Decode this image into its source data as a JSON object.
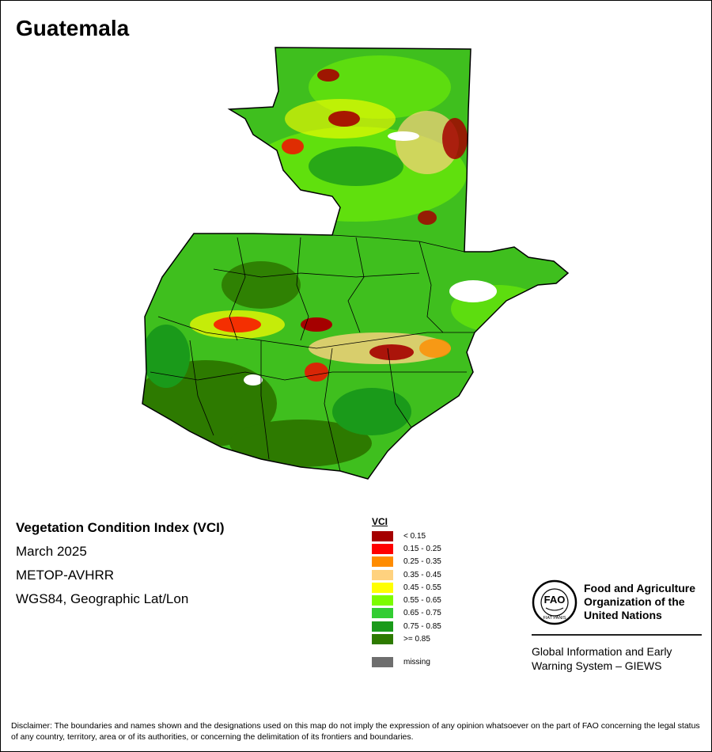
{
  "title": "Guatemala",
  "info": {
    "index_name": "Vegetation Condition Index (VCI)",
    "period": "March 2025",
    "sensor": "METOP-AVHRR",
    "projection": "WGS84, Geographic Lat/Lon"
  },
  "legend": {
    "title": "VCI",
    "classes": [
      {
        "label": "< 0.15",
        "color": "#a50000"
      },
      {
        "label": "0.15 - 0.25",
        "color": "#ff0000"
      },
      {
        "label": "0.25 - 0.35",
        "color": "#ff8c00"
      },
      {
        "label": "0.35 - 0.45",
        "color": "#ffd27f"
      },
      {
        "label": "0.45 - 0.55",
        "color": "#ffff00"
      },
      {
        "label": "0.55 - 0.65",
        "color": "#7cfc00"
      },
      {
        "label": "0.65 - 0.75",
        "color": "#32cd32"
      },
      {
        "label": "0.75 - 0.85",
        "color": "#1a9a1a"
      },
      {
        "label": ">= 0.85",
        "color": "#2d7a00"
      }
    ],
    "missing": {
      "label": "missing",
      "color": "#6e6e6e"
    }
  },
  "fao": {
    "logo_letters": "FAO",
    "motto": "FIAT PANIS",
    "org_line1": "Food and Agriculture",
    "org_line2": "Organization of the",
    "org_line3": "United Nations",
    "giews_line1": "Global Information and Early",
    "giews_line2": "Warning System – GIEWS"
  },
  "disclaimer": "Disclaimer: The boundaries and names shown and the designations used on this map do not imply the expression of any opinion whatsoever on the part of FAO concerning the legal status of any country, territory, area or of its authorities, or concerning the delimitation of its frontiers and boundaries."
}
